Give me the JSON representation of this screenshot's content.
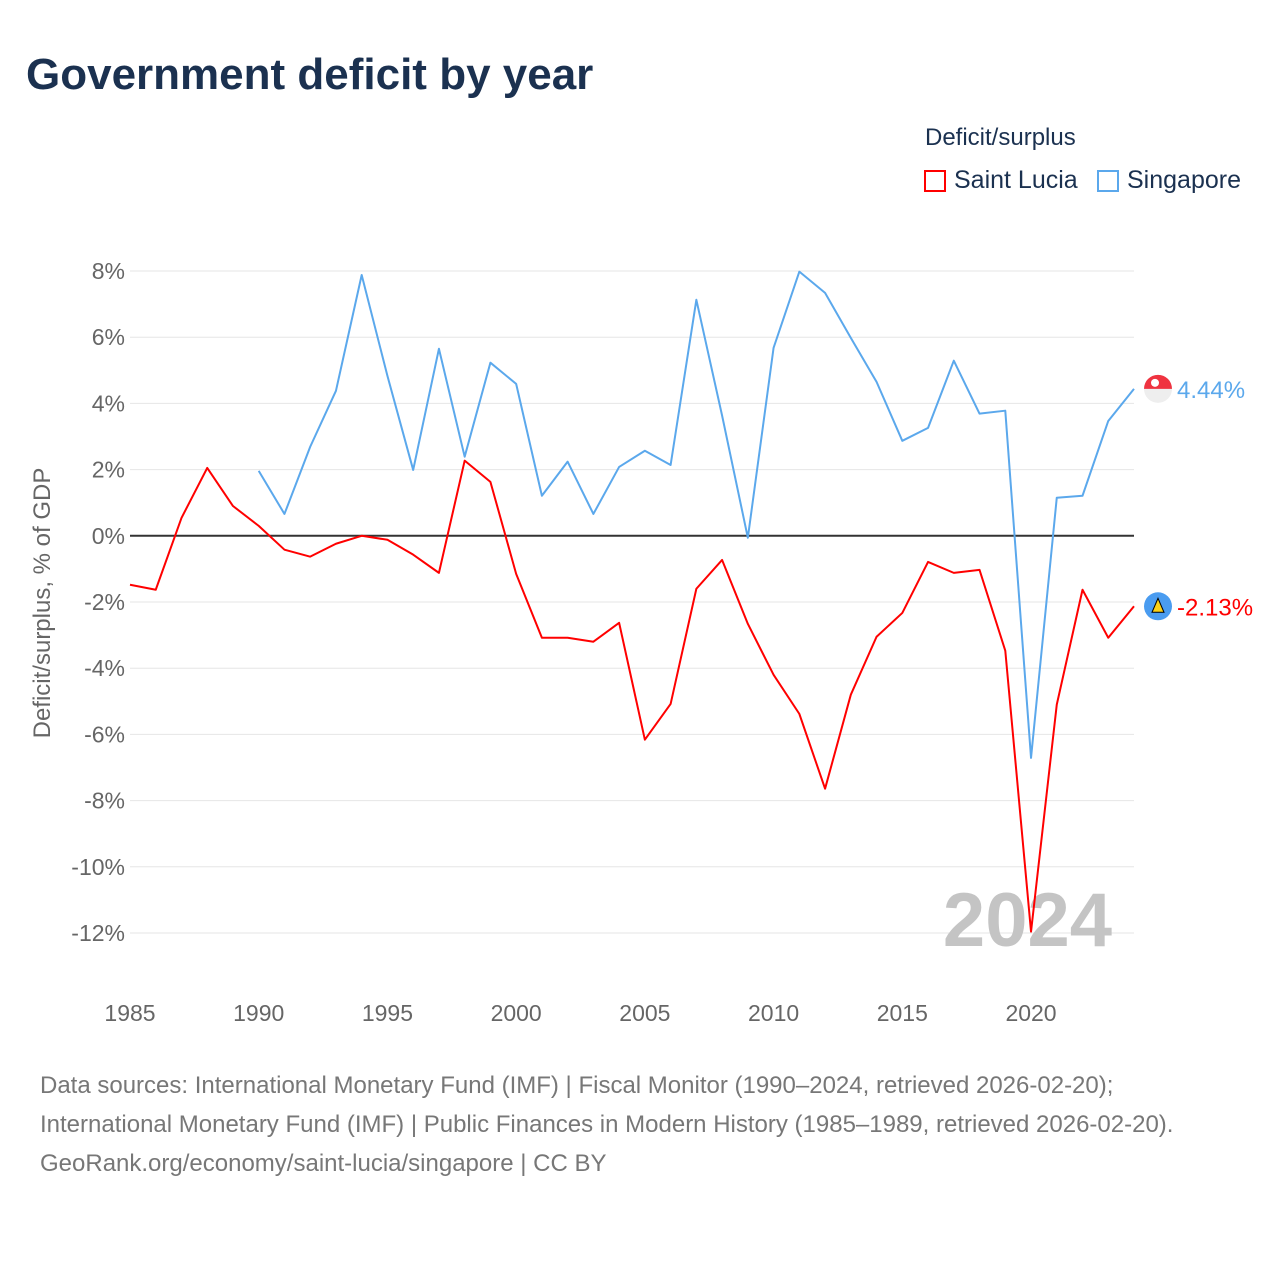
{
  "title": "Government deficit by year",
  "legend": {
    "title": "Deficit/surplus",
    "items": [
      {
        "label": "Saint Lucia",
        "color": "#ff0000"
      },
      {
        "label": "Singapore",
        "color": "#5ba8ec"
      }
    ]
  },
  "watermark_year": "2024",
  "sources": {
    "line1": "Data sources: International Monetary Fund (IMF) | Fiscal Monitor (1990–2024, retrieved 2026-02-20); International Monetary Fund (IMF) | Public Finances in Modern History (1985–1989, retrieved 2026-02-20).",
    "line2": "GeoRank.org/economy/saint-lucia/singapore | CC BY"
  },
  "chart_data": {
    "type": "line",
    "title": "Government deficit by year",
    "xlabel": "",
    "ylabel": "Deficit/surplus, % of GDP",
    "xlim": [
      1985,
      2024
    ],
    "ylim": [
      -12,
      8
    ],
    "x_ticks": [
      1985,
      1990,
      1995,
      2000,
      2005,
      2010,
      2015,
      2020
    ],
    "y_ticks": [
      8,
      6,
      4,
      2,
      0,
      -2,
      -4,
      -6,
      -8,
      -10,
      -12
    ],
    "y_tick_labels": [
      "8%",
      "6%",
      "4%",
      "2%",
      "0%",
      "-2%",
      "-4%",
      "-6%",
      "-8%",
      "-10%",
      "-12%"
    ],
    "grid": true,
    "legend_position": "top-right",
    "series": [
      {
        "name": "Saint Lucia",
        "color": "#ff0000",
        "end_label": "-2.13%",
        "x": [
          1985,
          1986,
          1987,
          1988,
          1989,
          1990,
          1991,
          1992,
          1993,
          1994,
          1995,
          1996,
          1997,
          1998,
          1999,
          2000,
          2001,
          2002,
          2003,
          2004,
          2005,
          2006,
          2007,
          2008,
          2009,
          2010,
          2011,
          2012,
          2013,
          2014,
          2015,
          2016,
          2017,
          2018,
          2019,
          2020,
          2021,
          2022,
          2023,
          2024
        ],
        "values": [
          -1.48,
          -1.63,
          0.54,
          2.05,
          0.9,
          0.3,
          -0.42,
          -0.63,
          -0.24,
          0.0,
          -0.12,
          -0.57,
          -1.12,
          2.27,
          1.63,
          -1.15,
          -3.08,
          -3.08,
          -3.2,
          -2.63,
          -6.16,
          -5.08,
          -1.6,
          -0.73,
          -2.66,
          -4.2,
          -5.38,
          -7.64,
          -4.8,
          -3.05,
          -2.33,
          -0.79,
          -1.12,
          -1.03,
          -3.47,
          -11.96,
          -5.1,
          -1.63,
          -3.08,
          -2.13
        ]
      },
      {
        "name": "Singapore",
        "color": "#5ba8ec",
        "end_label": "4.44%",
        "x": [
          1990,
          1991,
          1992,
          1993,
          1994,
          1995,
          1996,
          1997,
          1998,
          1999,
          2000,
          2001,
          2002,
          2003,
          2004,
          2005,
          2006,
          2007,
          2008,
          2009,
          2010,
          2011,
          2012,
          2013,
          2014,
          2015,
          2016,
          2017,
          2018,
          2019,
          2020,
          2021,
          2022,
          2023,
          2024
        ],
        "values": [
          1.96,
          0.66,
          2.69,
          4.38,
          7.88,
          4.83,
          1.99,
          5.65,
          2.39,
          5.23,
          4.59,
          1.21,
          2.24,
          0.66,
          2.08,
          2.57,
          2.14,
          7.13,
          3.63,
          -0.06,
          5.68,
          7.98,
          7.34,
          5.98,
          4.65,
          2.87,
          3.26,
          5.29,
          3.69,
          3.78,
          -6.71,
          1.15,
          1.21,
          3.47,
          4.44
        ]
      }
    ]
  }
}
